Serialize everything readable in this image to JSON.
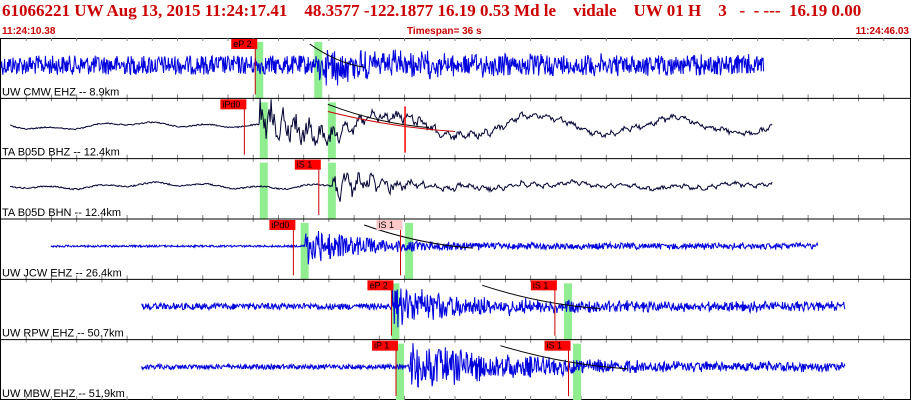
{
  "header": {
    "title": "61066221 UW Aug 13, 2015 11:24:17.41    48.3577 -122.1877 16.19 0.53 Md le    vidale    UW 01 H    3   -  - ---  16.19 0.00",
    "start_time": "11:24:10.38",
    "timespan": "Timespan=  36 s",
    "end_time": "11:24:46.03"
  },
  "colors": {
    "title": "#cc0000",
    "trace_short": "#0000dd",
    "trace_broadband": "#000033",
    "pick_box": "#ff0000",
    "pick_box_light": "#ffc8c8",
    "window_band": "#90ee90",
    "grid": "#808080",
    "theory_curve": "#000000",
    "fit_curve": "#cc0000"
  },
  "traces": [
    {
      "label": "UW CMW EHZ -- 8.9km",
      "style": "short",
      "start": 0,
      "end": 0.84,
      "onset": 0.35,
      "amp": 12,
      "noise": 12,
      "decay": 1.2,
      "osc": 0,
      "picks": [
        {
          "label": "eP 2",
          "pos": 0.28,
          "light": false
        }
      ],
      "band": 0.28,
      "band2": 0.345,
      "curve": [
        0.34,
        0.4
      ]
    },
    {
      "label": "TA B05D BHZ -- 12.4km",
      "style": "broad",
      "start": 0.01,
      "end": 0.85,
      "onset": 0.285,
      "amp": 20,
      "noise": 1.2,
      "decay": 1.5,
      "osc": 9,
      "picks": [
        {
          "label": "iPd0",
          "pos": 0.268,
          "light": false
        }
      ],
      "band": 0.285,
      "band2": 0.36,
      "curve": [
        0.36,
        0.47
      ],
      "fitcurve": true,
      "marker": 0.445
    },
    {
      "label": "TA B05D BHN -- 12.4km",
      "style": "broad",
      "start": 0.01,
      "end": 0.85,
      "onset": 0.365,
      "amp": 16,
      "noise": 1.5,
      "decay": 2.2,
      "osc": 0,
      "picks": [
        {
          "label": "iS 1",
          "pos": 0.35,
          "light": false
        }
      ],
      "band": 0.285,
      "band2": 0.36
    },
    {
      "label": "UW JCW EHZ -- 26.4km",
      "style": "short",
      "start": 0.055,
      "end": 0.9,
      "onset": 0.335,
      "amp": 18,
      "noise": 1.2,
      "decay": 2.5,
      "osc": 0,
      "picks": [
        {
          "label": "iPd0",
          "pos": 0.322,
          "light": false
        },
        {
          "label": "iS 1",
          "pos": 0.44,
          "light": true
        }
      ],
      "band": 0.33,
      "band2": 0.445,
      "curve": [
        0.4,
        0.52
      ]
    },
    {
      "label": "UW RPW EHZ -- 50.7km",
      "style": "short",
      "start": 0.155,
      "end": 0.93,
      "onset": 0.43,
      "amp": 18,
      "noise": 4,
      "decay": 1.5,
      "osc": 0,
      "picks": [
        {
          "label": "eP 2",
          "pos": 0.43,
          "light": false
        },
        {
          "label": "iS 1",
          "pos": 0.61,
          "light": false
        }
      ],
      "band": 0.43,
      "band2": 0.62,
      "curve": [
        0.53,
        0.66
      ]
    },
    {
      "label": "UW MBW EHZ -- 51.9km",
      "style": "short",
      "start": 0.155,
      "end": 0.93,
      "onset": 0.45,
      "amp": 22,
      "noise": 3,
      "decay": 1.2,
      "osc": 0,
      "picks": [
        {
          "label": "iP 1",
          "pos": 0.435,
          "light": false
        },
        {
          "label": "iS 1",
          "pos": 0.625,
          "light": false
        }
      ],
      "band": 0.435,
      "band2": 0.63,
      "curve": [
        0.55,
        0.69
      ]
    }
  ]
}
